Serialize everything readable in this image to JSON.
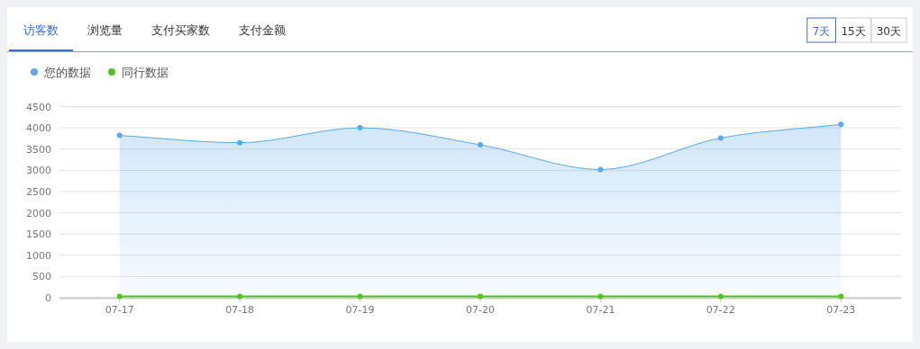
{
  "chart_data": {
    "type": "area",
    "categories": [
      "07-17",
      "07-18",
      "07-19",
      "07-20",
      "07-21",
      "07-22",
      "07-23"
    ],
    "series": [
      {
        "name": "您的数据",
        "color": "#5ba8ee",
        "values": [
          3820,
          3650,
          4000,
          3600,
          3020,
          3760,
          4080
        ]
      },
      {
        "name": "同行数据",
        "color": "#52c41a",
        "type": "line",
        "values": [
          30,
          30,
          30,
          30,
          30,
          30,
          30
        ]
      }
    ],
    "ylim": [
      0,
      4500
    ],
    "yticks": [
      0,
      500,
      1000,
      1500,
      2000,
      2500,
      3000,
      3500,
      4000,
      4500
    ],
    "grid": "y",
    "legend": "top left",
    "marker": "circle",
    "annotations": [
      "访客数",
      "浏览量",
      "支付买家数",
      "支付金额",
      "7天",
      "15天",
      "30天"
    ]
  }
}
